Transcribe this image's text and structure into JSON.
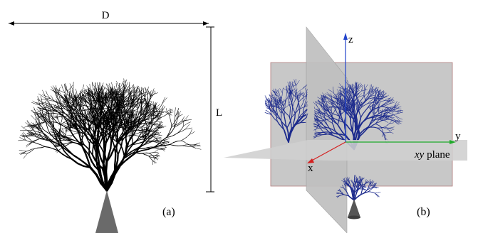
{
  "panel_a": {
    "dimension_width_label": "D",
    "dimension_height_label": "L",
    "panel_label": "(a)",
    "tree_color": "#000000",
    "soma_color": "#6a6a6a"
  },
  "panel_b": {
    "axis_z_label": "z",
    "axis_y_label": "y",
    "axis_x_label": "x",
    "plane_label_italic": "xy",
    "plane_label_rest": " plane",
    "panel_label": "(b)",
    "tree_color": "#1c2a8c",
    "plane_color": "#c8c8c8",
    "axis_colors": {
      "x": "#d42020",
      "y": "#1faa2a",
      "z": "#2244cc"
    },
    "soma_color": "#555555"
  }
}
